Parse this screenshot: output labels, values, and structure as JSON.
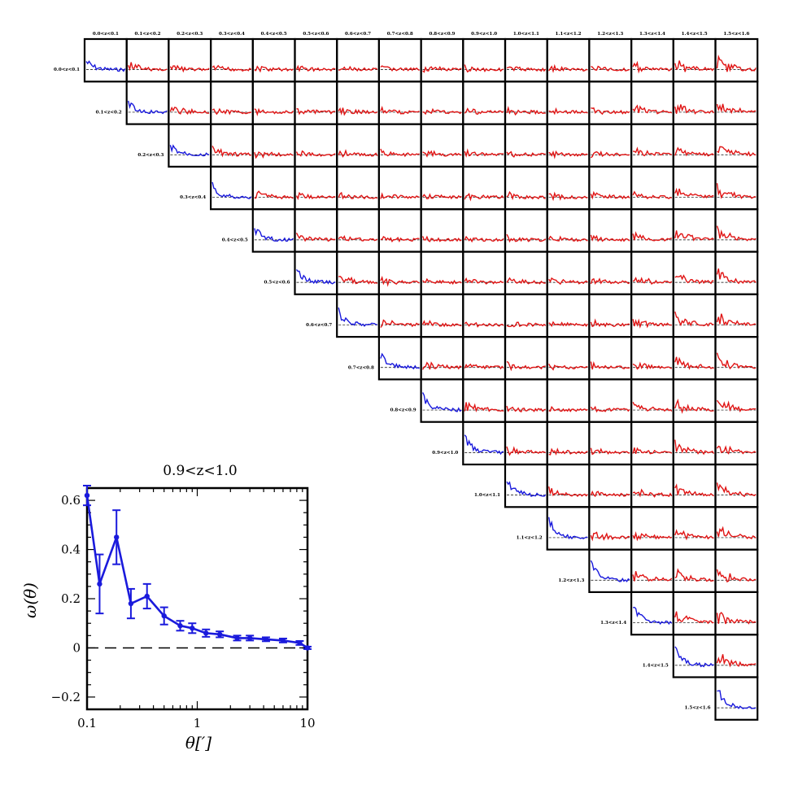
{
  "colors": {
    "auto": "#1a1adc",
    "cross": "#e01515",
    "axis": "#000000",
    "zero_line": "#000000"
  },
  "chart_data": [
    {
      "type": "line",
      "title": "0.9<z<1.0",
      "xlabel": "θ[′]",
      "ylabel": "ω(θ)",
      "xscale": "log",
      "xlim": [
        0.1,
        10
      ],
      "ylim": [
        -0.25,
        0.65
      ],
      "xticks": [
        "0.1",
        "1",
        "10"
      ],
      "yticks": [
        "−0.2",
        "0",
        "0.2",
        "0.4",
        "0.6"
      ],
      "grid": false,
      "reference_line": {
        "y": 0,
        "style": "dashed"
      },
      "series": [
        {
          "x": [
            0.1,
            0.13,
            0.185,
            0.25,
            0.35,
            0.5,
            0.7,
            0.9,
            1.2,
            1.6,
            2.3,
            3.0,
            4.2,
            6.0,
            8.5,
            10
          ],
          "y": [
            0.62,
            0.26,
            0.45,
            0.18,
            0.21,
            0.13,
            0.09,
            0.08,
            0.06,
            0.055,
            0.04,
            0.04,
            0.035,
            0.03,
            0.02,
            0.0
          ],
          "yerr": [
            0.04,
            0.12,
            0.11,
            0.06,
            0.05,
            0.035,
            0.02,
            0.02,
            0.015,
            0.012,
            0.01,
            0.01,
            0.008,
            0.008,
            0.008,
            0.005
          ]
        }
      ]
    },
    {
      "type": "line",
      "grid_size": 16,
      "description_of_layout": "upper-triangular matrix of auto (diagonal, blue) and cross (off-diagonal, red) correlation panels",
      "column_labels": [
        "0.0<z<0.1",
        "0.1<z<0.2",
        "0.2<z<0.3",
        "0.3<z<0.4",
        "0.4<z<0.5",
        "0.5<z<0.6",
        "0.6<z<0.7",
        "0.7<z<0.8",
        "0.8<z<0.9",
        "0.9<z<1.0",
        "1.0<z<1.1",
        "1.1<z<1.2",
        "1.2<z<1.3",
        "1.3<z<1.4",
        "1.4<z<1.5",
        "1.5<z<1.6"
      ],
      "row_labels": [
        "0.0<z<0.1",
        "0.1<z<0.2",
        "0.2<z<0.3",
        "0.3<z<0.4",
        "0.4<z<0.5",
        "0.5<z<0.6",
        "0.6<z<0.7",
        "0.7<z<0.8",
        "0.8<z<0.9",
        "0.9<z<1.0",
        "1.0<z<1.1",
        "1.1<z<1.2",
        "1.2<z<1.3",
        "1.3<z<1.4",
        "1.4<z<1.5",
        "1.5<z<1.6"
      ]
    }
  ]
}
